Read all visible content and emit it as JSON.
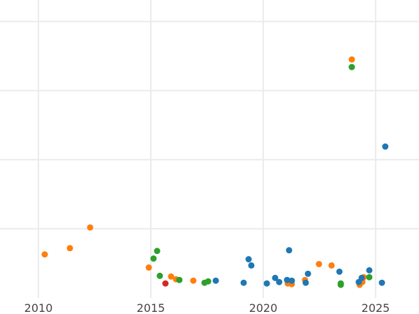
{
  "chart_data": {
    "type": "scatter",
    "title": "",
    "xlabel": "",
    "ylabel": "",
    "xlim": [
      2008.29,
      2026.93
    ],
    "ylim": [
      0,
      4.31
    ],
    "x_ticks": [
      2010,
      2015,
      2020,
      2025
    ],
    "x_tick_labels": [
      "2010",
      "2015",
      "2020",
      "2025"
    ],
    "y_gridlines": [
      1,
      2,
      3,
      4
    ],
    "y_tick_labels_shown": false,
    "grid": true,
    "colors": {
      "blue": "#1f77b4",
      "orange": "#ff7f0e",
      "green": "#2ca02c",
      "red": "#d62728"
    },
    "series": [
      {
        "color": "#ff7f0e",
        "points": [
          [
            2010.28,
            0.63
          ],
          [
            2011.4,
            0.72
          ],
          [
            2012.3,
            1.02
          ],
          [
            2014.91,
            0.44
          ],
          [
            2015.9,
            0.31
          ],
          [
            2016.12,
            0.27
          ],
          [
            2016.89,
            0.25
          ],
          [
            2021.09,
            0.21
          ],
          [
            2021.27,
            0.2
          ],
          [
            2021.86,
            0.26
          ],
          [
            2022.48,
            0.49
          ],
          [
            2023.04,
            0.47
          ],
          [
            2023.94,
            3.45
          ],
          [
            2024.29,
            0.19
          ],
          [
            2024.41,
            0.23
          ],
          [
            2024.47,
            0.3
          ]
        ]
      },
      {
        "color": "#2ca02c",
        "points": [
          [
            2015.12,
            0.57
          ],
          [
            2015.28,
            0.68
          ],
          [
            2015.4,
            0.32
          ],
          [
            2016.27,
            0.26
          ],
          [
            2017.39,
            0.22
          ],
          [
            2017.55,
            0.24
          ],
          [
            2023.45,
            0.21
          ],
          [
            2023.45,
            0.19
          ],
          [
            2023.94,
            3.34
          ],
          [
            2024.72,
            0.3
          ]
        ]
      },
      {
        "color": "#d62728",
        "points": [
          [
            2015.65,
            0.21
          ]
        ]
      },
      {
        "color": "#1f77b4",
        "points": [
          [
            2017.89,
            0.25
          ],
          [
            2019.13,
            0.22
          ],
          [
            2019.35,
            0.56
          ],
          [
            2019.47,
            0.47
          ],
          [
            2020.16,
            0.21
          ],
          [
            2020.53,
            0.29
          ],
          [
            2020.71,
            0.23
          ],
          [
            2021.06,
            0.26
          ],
          [
            2021.15,
            0.69
          ],
          [
            2021.27,
            0.25
          ],
          [
            2021.89,
            0.22
          ],
          [
            2021.99,
            0.35
          ],
          [
            2023.39,
            0.38
          ],
          [
            2024.25,
            0.23
          ],
          [
            2024.38,
            0.29
          ],
          [
            2024.72,
            0.4
          ],
          [
            2025.28,
            0.22
          ],
          [
            2025.43,
            2.19
          ]
        ]
      }
    ]
  }
}
